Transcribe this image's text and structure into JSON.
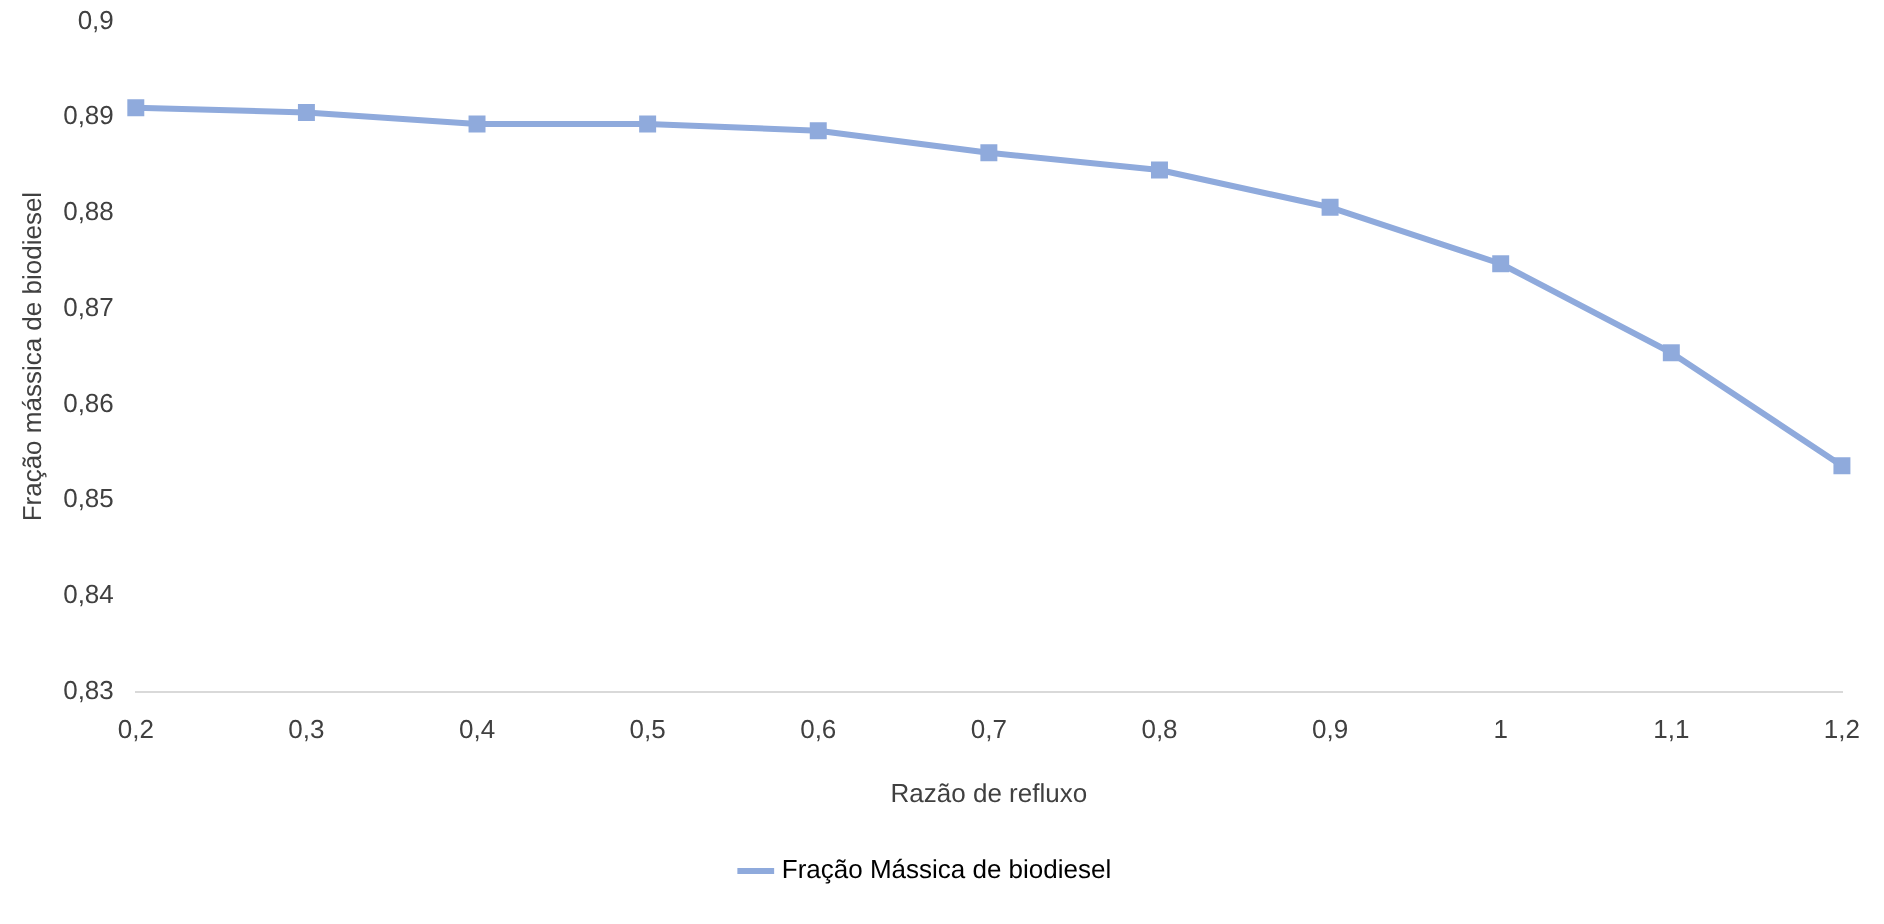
{
  "chart_data": {
    "type": "line",
    "xlabel": "Razão de refluxo",
    "ylabel": "Fração mássica de biodiesel",
    "categories": [
      "0,2",
      "0,3",
      "0,4",
      "0,5",
      "0,6",
      "0,7",
      "0,8",
      "0,9",
      "1",
      "1,1",
      "1,2"
    ],
    "series": [
      {
        "name": "Fração Mássica de biodiesel",
        "color": "#8faadc",
        "values": [
          0.891,
          0.8905,
          0.8893,
          0.8893,
          0.8886,
          0.8863,
          0.8845,
          0.8806,
          0.8747,
          0.8654,
          0.8536
        ]
      }
    ],
    "ylim": [
      0.83,
      0.9
    ],
    "yticks": [
      {
        "value": 0.83,
        "label": "0,83"
      },
      {
        "value": 0.84,
        "label": "0,84"
      },
      {
        "value": 0.85,
        "label": "0,85"
      },
      {
        "value": 0.86,
        "label": "0,86"
      },
      {
        "value": 0.87,
        "label": "0,87"
      },
      {
        "value": 0.88,
        "label": "0,88"
      },
      {
        "value": 0.89,
        "label": "0,89"
      },
      {
        "value": 0.9,
        "label": "0,9"
      }
    ],
    "grid": false,
    "legend": "bottom",
    "marker": "square",
    "line_style": "solid"
  }
}
